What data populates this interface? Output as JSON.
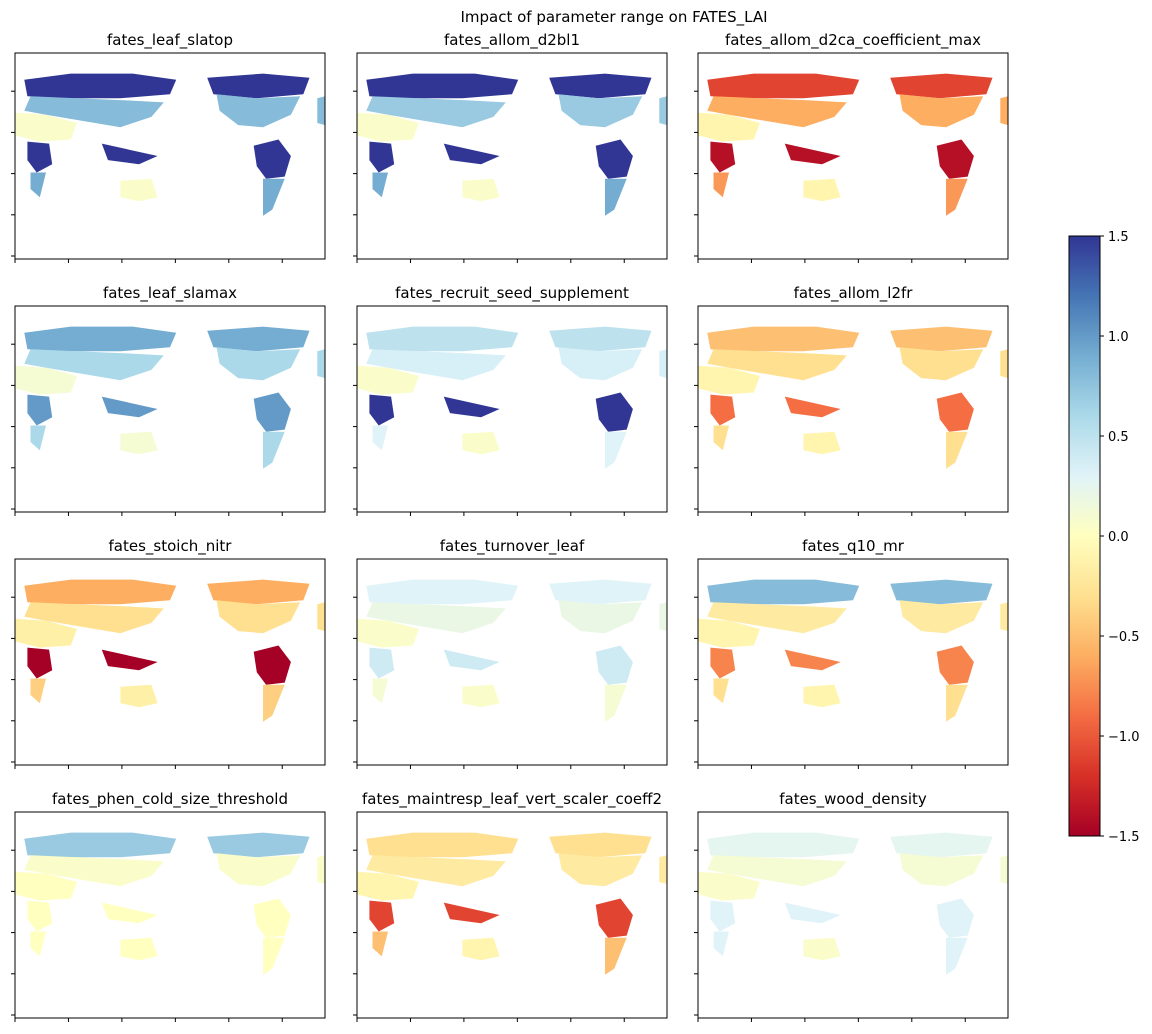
{
  "figure": {
    "title": "Impact of parameter range on FATES_LAI"
  },
  "chart_data": {
    "type": "heatmap",
    "title": "Impact of parameter range on FATES_LAI",
    "grid": false,
    "layout": "4 rows x 3 columns of global maps",
    "colormap": "RdYlBu",
    "colorbar": {
      "placement": "right",
      "vmin": -1.5,
      "vmax": 1.5,
      "ticks": [
        1.5,
        1.0,
        0.5,
        0.0,
        -0.5,
        -1.0,
        -1.5
      ],
      "tick_labels": [
        "1.5",
        "1.0",
        "0.5",
        "0.0",
        "−0.5",
        "−1.0",
        "−1.5"
      ],
      "stops": [
        "#a50026",
        "#d73027",
        "#f46d43",
        "#fdae61",
        "#fee090",
        "#ffffbf",
        "#e0f3f8",
        "#abd9e9",
        "#74add1",
        "#4575b4",
        "#313695"
      ]
    },
    "panels": [
      {
        "title": "fates_leaf_slatop",
        "values": {
          "boreal": 1.5,
          "temperate": 0.8,
          "arid": 0.05,
          "tropical": 1.5,
          "southern": 0.9
        }
      },
      {
        "title": "fates_allom_d2bl1",
        "values": {
          "boreal": 1.5,
          "temperate": 0.7,
          "arid": 0.05,
          "tropical": 1.5,
          "southern": 0.9
        }
      },
      {
        "title": "fates_allom_d2ca_coefficient_max",
        "values": {
          "boreal": -1.1,
          "temperate": -0.6,
          "arid": -0.1,
          "tropical": -1.4,
          "southern": -0.7
        }
      },
      {
        "title": "fates_leaf_slamax",
        "values": {
          "boreal": 0.9,
          "temperate": 0.6,
          "arid": 0.1,
          "tropical": 1.0,
          "southern": 0.6
        }
      },
      {
        "title": "fates_recruit_seed_supplement",
        "values": {
          "boreal": 0.5,
          "temperate": 0.35,
          "arid": 0.05,
          "tropical": 1.5,
          "southern": 0.3
        }
      },
      {
        "title": "fates_allom_l2fr",
        "values": {
          "boreal": -0.5,
          "temperate": -0.3,
          "arid": -0.1,
          "tropical": -0.9,
          "southern": -0.3
        }
      },
      {
        "title": "fates_stoich_nitr",
        "values": {
          "boreal": -0.6,
          "temperate": -0.3,
          "arid": -0.15,
          "tropical": -1.5,
          "southern": -0.4
        }
      },
      {
        "title": "fates_turnover_leaf",
        "values": {
          "boreal": 0.3,
          "temperate": 0.2,
          "arid": 0.05,
          "tropical": 0.4,
          "southern": 0.1
        }
      },
      {
        "title": "fates_q10_mr",
        "values": {
          "boreal": 0.8,
          "temperate": -0.2,
          "arid": -0.1,
          "tropical": -0.8,
          "southern": -0.3
        }
      },
      {
        "title": "fates_phen_cold_size_threshold",
        "values": {
          "boreal": 0.7,
          "temperate": 0.05,
          "arid": 0.0,
          "tropical": 0.0,
          "southern": 0.0
        }
      },
      {
        "title": "fates_maintresp_leaf_vert_scaler_coeff2",
        "values": {
          "boreal": -0.3,
          "temperate": -0.2,
          "arid": -0.1,
          "tropical": -1.1,
          "southern": -0.5
        }
      },
      {
        "title": "fates_wood_density",
        "values": {
          "boreal": 0.25,
          "temperate": 0.1,
          "arid": 0.05,
          "tropical": 0.3,
          "southern": 0.3
        }
      }
    ]
  }
}
